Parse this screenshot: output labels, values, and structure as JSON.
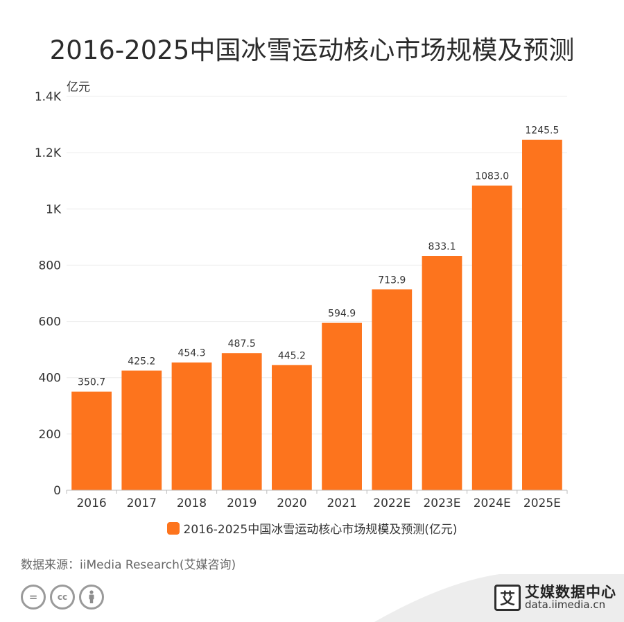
{
  "title": "2016-2025中国冰雪运动核心市场规模及预测",
  "chart_data": {
    "type": "bar",
    "categories": [
      "2016",
      "2017",
      "2018",
      "2019",
      "2020",
      "2021",
      "2022E",
      "2023E",
      "2024E",
      "2025E"
    ],
    "series": [
      {
        "name": "2016-2025中国冰雪运动核心市场规模及预测(亿元)",
        "values": [
          350.7,
          425.2,
          454.3,
          487.5,
          445.2,
          594.9,
          713.9,
          833.1,
          1083.0,
          1245.5
        ],
        "labels": [
          "350.7",
          "425.2",
          "454.3",
          "487.5",
          "445.2",
          "594.9",
          "713.9",
          "833.1",
          "1083.0",
          "1245.5"
        ],
        "color": "#fd741d"
      }
    ],
    "ylabel": "亿元",
    "ylim": [
      0,
      1400
    ],
    "yticks": [
      0,
      200,
      400,
      600,
      800,
      1000,
      1200,
      1400
    ],
    "ytick_labels": [
      "0",
      "200",
      "400",
      "600",
      "800",
      "1K",
      "1.2K",
      "1.4K"
    ],
    "grid": true,
    "legend_position": "bottom"
  },
  "source": "数据来源：iiMedia Research(艾媒咨询)",
  "license_icons": [
    "equals-icon",
    "cc-icon",
    "person-icon"
  ],
  "brand": {
    "mark": "艾",
    "name": "艾媒数据中心",
    "url": "data.iimedia.cn"
  }
}
